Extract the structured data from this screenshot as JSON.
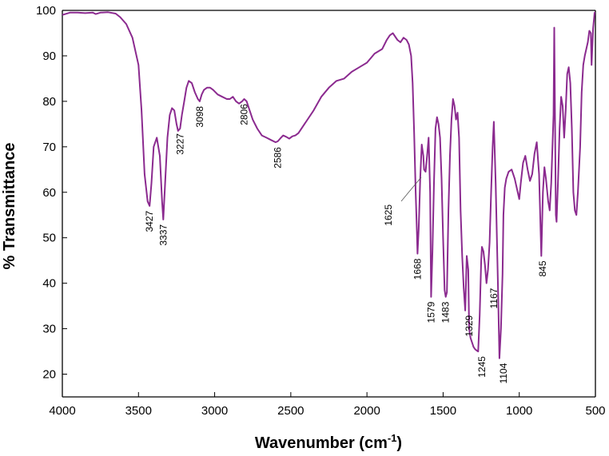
{
  "chart_data": {
    "type": "line",
    "title": "",
    "xlabel": "Wavenumber (cm-1)",
    "xlabel_main": "Wavenumber (cm",
    "xlabel_sup": "-1",
    "xlabel_close": ")",
    "ylabel": "% Transmittance",
    "xlim": [
      4000,
      500
    ],
    "ylim": [
      15,
      100
    ],
    "x_reversed": true,
    "grid": false,
    "legend": "none",
    "line_color": "#8b2a8f",
    "x_ticks": [
      4000,
      3500,
      3000,
      2500,
      2000,
      1500,
      1000,
      500
    ],
    "y_ticks": [
      20,
      30,
      40,
      50,
      60,
      70,
      80,
      90,
      100
    ],
    "series": [
      {
        "name": "",
        "x": [
          4000,
          3950,
          3900,
          3850,
          3800,
          3780,
          3750,
          3700,
          3650,
          3620,
          3580,
          3540,
          3500,
          3480,
          3460,
          3440,
          3427,
          3415,
          3400,
          3380,
          3360,
          3345,
          3337,
          3325,
          3310,
          3295,
          3280,
          3265,
          3250,
          3240,
          3227,
          3215,
          3200,
          3185,
          3170,
          3150,
          3130,
          3110,
          3098,
          3085,
          3070,
          3050,
          3030,
          3010,
          2980,
          2950,
          2920,
          2900,
          2880,
          2860,
          2840,
          2820,
          2806,
          2790,
          2770,
          2750,
          2720,
          2690,
          2660,
          2630,
          2600,
          2586,
          2570,
          2550,
          2530,
          2510,
          2490,
          2470,
          2450,
          2400,
          2350,
          2300,
          2250,
          2200,
          2150,
          2100,
          2050,
          2000,
          1950,
          1900,
          1870,
          1850,
          1830,
          1800,
          1780,
          1760,
          1740,
          1725,
          1710,
          1700,
          1690,
          1680,
          1672,
          1668,
          1660,
          1650,
          1640,
          1630,
          1625,
          1615,
          1605,
          1595,
          1585,
          1579,
          1570,
          1560,
          1550,
          1540,
          1530,
          1520,
          1510,
          1500,
          1490,
          1483,
          1475,
          1465,
          1455,
          1445,
          1435,
          1425,
          1415,
          1405,
          1395,
          1385,
          1375,
          1365,
          1355,
          1345,
          1335,
          1329,
          1320,
          1310,
          1300,
          1290,
          1280,
          1270,
          1260,
          1250,
          1245,
          1235,
          1225,
          1215,
          1205,
          1195,
          1185,
          1175,
          1167,
          1155,
          1140,
          1130,
          1120,
          1110,
          1104,
          1095,
          1085,
          1070,
          1050,
          1030,
          1010,
          1000,
          990,
          975,
          960,
          945,
          930,
          915,
          900,
          885,
          870,
          855,
          845,
          835,
          825,
          810,
          800,
          790,
          775,
          770,
          765,
          760,
          755,
          745,
          735,
          725,
          715,
          705,
          695,
          685,
          675,
          665,
          655,
          645,
          635,
          625,
          615,
          600,
          590,
          580,
          570,
          560,
          550,
          540,
          530,
          525,
          515,
          505,
          500
        ],
        "y": [
          99,
          99.5,
          99.5,
          99.4,
          99.5,
          99.2,
          99.5,
          99.6,
          99.3,
          98.5,
          97,
          94,
          88,
          78,
          64,
          58,
          57,
          62,
          70,
          72,
          68,
          58,
          54,
          62,
          72,
          77,
          78.5,
          78,
          75,
          73.5,
          74,
          77,
          80,
          83,
          84.5,
          84,
          82,
          80.5,
          80,
          81.5,
          82.5,
          83,
          83,
          82.5,
          81.5,
          81,
          80.5,
          80.5,
          81,
          80,
          79.5,
          80,
          80.5,
          80,
          78,
          76,
          74,
          72.5,
          72,
          71.5,
          71,
          71.2,
          71.8,
          72.5,
          72.2,
          71.8,
          72.3,
          72.5,
          73,
          75.5,
          78,
          81,
          83,
          84.5,
          85,
          86.5,
          87.5,
          88.5,
          90.5,
          91.5,
          93.5,
          94.5,
          95,
          93.5,
          93,
          94,
          93.5,
          92.5,
          90,
          84,
          73,
          60,
          51,
          46.5,
          52,
          63,
          70.5,
          68,
          65,
          64.5,
          68,
          72,
          60,
          37,
          47,
          62,
          74,
          76.5,
          75,
          72,
          63,
          50,
          38.5,
          37,
          38,
          56,
          68,
          76,
          80.5,
          79,
          76,
          77.5,
          72,
          56,
          46,
          39,
          34,
          46,
          43,
          30,
          28,
          27,
          26,
          25.5,
          25.2,
          25,
          33,
          45,
          48,
          47,
          44,
          40,
          43,
          49,
          60,
          70,
          75.5,
          62,
          40,
          23.5,
          30,
          42,
          55,
          61,
          63,
          64.5,
          65,
          63,
          60,
          58.5,
          62,
          66.5,
          68,
          65,
          62.5,
          64,
          68.5,
          71,
          64,
          46,
          60,
          65.5,
          63,
          58,
          56,
          62,
          77,
          96.2,
          75,
          55,
          53.5,
          63,
          74,
          81,
          79,
          72,
          78,
          86,
          87.5,
          84,
          74,
          60,
          56,
          55,
          60,
          70,
          82,
          88,
          90,
          91.5,
          93,
          95.5,
          95,
          88,
          96,
          99.5,
          99.5
        ]
      }
    ],
    "annotations": [
      {
        "text": "3427",
        "x": 3427,
        "y": 57,
        "angle": -90
      },
      {
        "text": "3337",
        "x": 3337,
        "y": 54,
        "angle": -90
      },
      {
        "text": "3227",
        "x": 3227,
        "y": 74,
        "angle": -90
      },
      {
        "text": "3098",
        "x": 3098,
        "y": 80,
        "angle": -90
      },
      {
        "text": "2806",
        "x": 2806,
        "y": 80.5,
        "angle": -90
      },
      {
        "text": "2586",
        "x": 2586,
        "y": 71,
        "angle": -90
      },
      {
        "text": "1625",
        "x": 1625,
        "y": 65,
        "angle": -90
      },
      {
        "text": "1668",
        "x": 1668,
        "y": 46.5,
        "angle": -90
      },
      {
        "text": "1579",
        "x": 1579,
        "y": 37,
        "angle": -90
      },
      {
        "text": "1483",
        "x": 1483,
        "y": 37,
        "angle": -90
      },
      {
        "text": "1329",
        "x": 1329,
        "y": 34,
        "angle": -90
      },
      {
        "text": "1245",
        "x": 1245,
        "y": 25,
        "angle": -90
      },
      {
        "text": "1167",
        "x": 1167,
        "y": 40,
        "angle": -90
      },
      {
        "text": "1104",
        "x": 1104,
        "y": 23.5,
        "angle": -90
      },
      {
        "text": "845",
        "x": 845,
        "y": 46,
        "angle": -90
      }
    ]
  }
}
